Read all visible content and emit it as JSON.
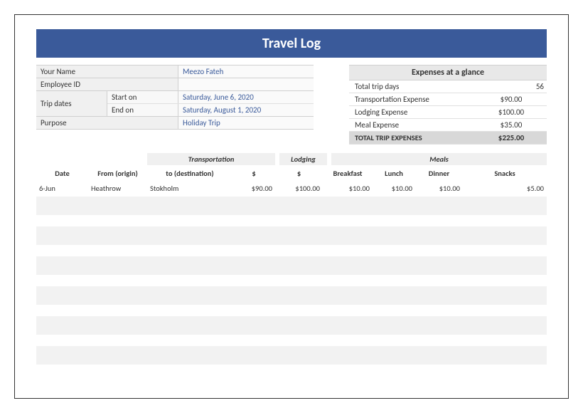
{
  "title": "Travel Log",
  "info": {
    "your_name_label": "Your Name",
    "your_name_value": "Meezo Fateh",
    "employee_id_label": "Employee ID",
    "employee_id_value": "",
    "trip_dates_label": "Trip dates",
    "start_on_label": "Start on",
    "start_on_value": "Saturday, June 6, 2020",
    "end_on_label": "End on",
    "end_on_value": "Saturday, August 1, 2020",
    "purpose_label": "Purpose",
    "purpose_value": "Holiday Trip"
  },
  "glance": {
    "header": "Expenses at a glance",
    "rows": [
      {
        "label": "Total trip days",
        "value": "56"
      },
      {
        "label": "Transportation Expense",
        "value": "$90.00"
      },
      {
        "label": "Lodging Expense",
        "value": "$100.00"
      },
      {
        "label": "Meal Expense",
        "value": "$35.00"
      }
    ],
    "total_label": "TOTAL TRIP EXPENSES",
    "total_value": "$225.00"
  },
  "log": {
    "group_transportation": "Transportation",
    "group_lodging": "Lodging",
    "group_meals": "Meals",
    "headers": {
      "date": "Date",
      "from": "From (origin)",
      "to": "to (destination)",
      "t_amount": "$",
      "lodging": "$",
      "breakfast": "Breakfast",
      "lunch": "Lunch",
      "dinner": "Dinner",
      "snacks": "Snacks"
    },
    "rows": [
      {
        "date": "6-Jun",
        "from": "Heathrow",
        "to": "Stokholm",
        "t_amount": "$90.00",
        "lodging": "$100.00",
        "breakfast": "$10.00",
        "lunch": "$10.00",
        "dinner": "$10.00",
        "snacks": "$5.00"
      }
    ]
  },
  "colors": {
    "title_bg": "#3a5a9a",
    "accent_text": "#3a5a9a",
    "row_alt": "#f2f2f2"
  }
}
